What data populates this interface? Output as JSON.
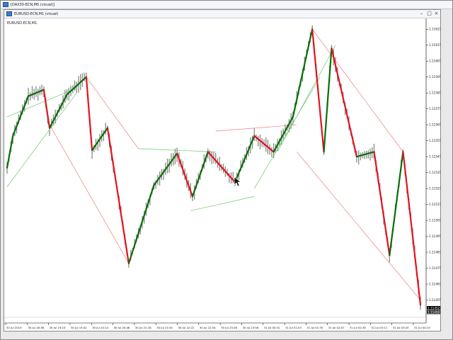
{
  "back_window": {
    "title": "[DAX30-ECN,M5 (visual)]"
  },
  "window": {
    "title": "EURUSD-ECN,M1 (visual)",
    "chart_label": "EURUSD-ECN,M1",
    "controls": {
      "minimize": "–",
      "restore": "□",
      "close": "×"
    }
  },
  "chart_data": {
    "type": "line",
    "symbol": "EURUSD-ECN",
    "timeframe": "M1",
    "y_ticks": [
      "1.11625",
      "1.11615",
      "1.11605",
      "1.11595",
      "1.11585",
      "1.11575",
      "1.11565",
      "1.11555",
      "1.11545",
      "1.11535",
      "1.11525",
      "1.11515",
      "1.11505",
      "1.11495",
      "1.11485",
      "1.11475",
      "1.11465",
      "1.11455"
    ],
    "ylim": [
      1.11445,
      1.1163
    ],
    "price_labels": [
      "1.11452",
      "1.11450"
    ],
    "x_ticks": [
      "30 Jul 2019",
      "30 Jul 18:38",
      "30 Jul 19:10",
      "30 Jul 19:42",
      "30 Jul 20:14",
      "30 Jul 20:46",
      "30 Jul 21:18",
      "30 Jul 21:50",
      "30 Jul 22:22",
      "30 Jul 22:54",
      "30 Jul 23:26",
      "30 Jul 23:58",
      "31 Jul 00:31",
      "31 Jul 01:03",
      "31 Jul 01:35",
      "31 Jul 02:07",
      "31 Jul 02:39",
      "31 Jul 03:11",
      "31 Jul 03:43",
      "31 Jul 04:15"
    ],
    "zigzag_up_color": "#0a6e0a",
    "zigzag_down_color": "#e0141e",
    "channel_up_color": "#6cc76c",
    "channel_down_color": "#f08080",
    "price_line_color": "#8a8a8a",
    "zigzag_pivots": [
      {
        "i": 0,
        "price": 1.11538
      },
      {
        "i": 3,
        "price": 1.11558
      },
      {
        "i": 11,
        "price": 1.11583
      },
      {
        "i": 19,
        "price": 1.11587
      },
      {
        "i": 22,
        "price": 1.11563
      },
      {
        "i": 31,
        "price": 1.11584
      },
      {
        "i": 41,
        "price": 1.11595
      },
      {
        "i": 44,
        "price": 1.11549
      },
      {
        "i": 52,
        "price": 1.11563
      },
      {
        "i": 63,
        "price": 1.11478
      },
      {
        "i": 76,
        "price": 1.11527
      },
      {
        "i": 88,
        "price": 1.11547
      },
      {
        "i": 96,
        "price": 1.1152
      },
      {
        "i": 104,
        "price": 1.11548
      },
      {
        "i": 118,
        "price": 1.11529
      },
      {
        "i": 128,
        "price": 1.11558
      },
      {
        "i": 138,
        "price": 1.11548
      },
      {
        "i": 148,
        "price": 1.1157
      },
      {
        "i": 158,
        "price": 1.11625
      },
      {
        "i": 164,
        "price": 1.11548
      },
      {
        "i": 168,
        "price": 1.11613
      },
      {
        "i": 181,
        "price": 1.11545
      },
      {
        "i": 190,
        "price": 1.11548
      },
      {
        "i": 198,
        "price": 1.11483
      },
      {
        "i": 205,
        "price": 1.11548
      },
      {
        "i": 214,
        "price": 1.11452
      }
    ],
    "channel_lines": [
      {
        "kind": "up",
        "a": {
          "i": 0,
          "price": 1.1157
        },
        "b": {
          "i": 36,
          "price": 1.11588
        }
      },
      {
        "kind": "up",
        "a": {
          "i": 0,
          "price": 1.11526
        },
        "b": {
          "i": 36,
          "price": 1.11585
        }
      },
      {
        "kind": "down",
        "a": {
          "i": 22,
          "price": 1.11565
        },
        "b": {
          "i": 63,
          "price": 1.11478
        }
      },
      {
        "kind": "down",
        "a": {
          "i": 41,
          "price": 1.11595
        },
        "b": {
          "i": 68,
          "price": 1.1155
        }
      },
      {
        "kind": "up",
        "a": {
          "i": 68,
          "price": 1.1155
        },
        "b": {
          "i": 108,
          "price": 1.11548
        }
      },
      {
        "kind": "up",
        "a": {
          "i": 95,
          "price": 1.11511
        },
        "b": {
          "i": 128,
          "price": 1.1152
        }
      },
      {
        "kind": "down",
        "a": {
          "i": 108,
          "price": 1.11561
        },
        "b": {
          "i": 150,
          "price": 1.11565
        }
      },
      {
        "kind": "up",
        "a": {
          "i": 128,
          "price": 1.11525
        },
        "b": {
          "i": 162,
          "price": 1.11595
        }
      },
      {
        "kind": "up",
        "a": {
          "i": 140,
          "price": 1.11548
        },
        "b": {
          "i": 170,
          "price": 1.11615
        }
      },
      {
        "kind": "down",
        "a": {
          "i": 158,
          "price": 1.11625
        },
        "b": {
          "i": 205,
          "price": 1.11548
        }
      },
      {
        "kind": "down",
        "a": {
          "i": 150,
          "price": 1.11548
        },
        "b": {
          "i": 214,
          "price": 1.11455
        }
      }
    ]
  }
}
